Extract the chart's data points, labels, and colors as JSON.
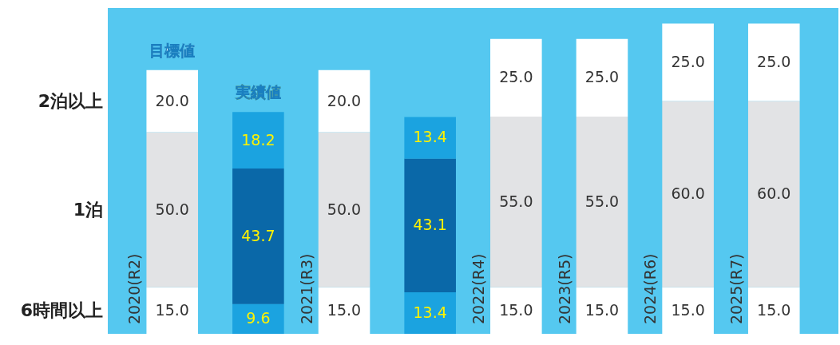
{
  "chart_data": {
    "type": "bar",
    "stacked": true,
    "categories": [
      "2020(R2)",
      null,
      "2021(R3)",
      null,
      "2022(R4)",
      "2023(R5)",
      "2024(R6)",
      "2025(R7)"
    ],
    "series": [
      {
        "name": "6時間以上",
        "color": "#ffffff",
        "values": [
          15.0,
          null,
          15.0,
          null,
          15.0,
          15.0,
          15.0,
          15.0
        ],
        "value_labels": [
          "15.0",
          null,
          "15.0",
          null,
          "15.0",
          "15.0",
          "15.0",
          "15.0"
        ]
      },
      {
        "color": "#1ba3e0",
        "values": [
          null,
          9.6,
          null,
          13.4,
          null,
          null,
          null,
          null
        ],
        "value_labels": [
          null,
          "9.6",
          null,
          "13.4",
          null,
          null,
          null,
          null
        ]
      },
      {
        "name": "1泊",
        "color": "#e2e3e5",
        "values": [
          50.0,
          null,
          50.0,
          null,
          55.0,
          55.0,
          60.0,
          60.0
        ],
        "value_labels": [
          "50.0",
          null,
          "50.0",
          null,
          "55.0",
          "55.0",
          "60.0",
          "60.0"
        ]
      },
      {
        "color": "#0a68a8",
        "values": [
          null,
          43.7,
          null,
          43.1,
          null,
          null,
          null,
          null
        ],
        "value_labels": [
          null,
          "43.7",
          null,
          "43.1",
          null,
          null,
          null,
          null
        ]
      },
      {
        "name": "2泊以上",
        "color": "#ffffff",
        "values": [
          20.0,
          null,
          20.0,
          null,
          25.0,
          25.0,
          25.0,
          25.0
        ],
        "value_labels": [
          "20.0",
          null,
          "20.0",
          null,
          "25.0",
          "25.0",
          "25.0",
          "25.0"
        ]
      },
      {
        "color": "#1ba3e0",
        "values": [
          null,
          18.2,
          null,
          13.4,
          null,
          null,
          null,
          null
        ],
        "value_labels": [
          null,
          "18.2",
          null,
          "13.4",
          null,
          null,
          null,
          null
        ]
      }
    ],
    "annotations": [
      "目標値",
      "実績値"
    ]
  }
}
